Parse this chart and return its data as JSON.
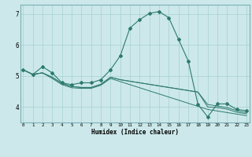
{
  "xlabel": "Humidex (Indice chaleur)",
  "bg_color": "#cce8ea",
  "grid_color": "#a8d0d4",
  "line_color": "#2d7a6e",
  "x_values": [
    0,
    1,
    2,
    3,
    4,
    5,
    6,
    7,
    8,
    9,
    10,
    11,
    12,
    13,
    14,
    15,
    16,
    17,
    18,
    19,
    20,
    21,
    22,
    23
  ],
  "series": [
    [
      5.2,
      5.05,
      5.3,
      5.1,
      4.78,
      4.72,
      4.78,
      4.78,
      4.88,
      5.2,
      5.65,
      6.55,
      6.82,
      7.02,
      7.08,
      6.88,
      6.18,
      5.48,
      4.08,
      3.68,
      4.1,
      4.1,
      3.92,
      3.88
    ],
    [
      5.2,
      5.05,
      5.1,
      4.92,
      4.72,
      4.62,
      4.6,
      4.6,
      4.7,
      4.92,
      4.82,
      4.72,
      4.62,
      4.52,
      4.42,
      4.32,
      4.22,
      4.12,
      4.02,
      3.92,
      3.87,
      3.82,
      3.77,
      3.72
    ],
    [
      5.2,
      5.05,
      5.1,
      4.96,
      4.76,
      4.66,
      4.63,
      4.63,
      4.73,
      4.96,
      4.88,
      4.83,
      4.78,
      4.73,
      4.68,
      4.63,
      4.58,
      4.53,
      4.48,
      4.0,
      3.98,
      3.93,
      3.83,
      3.78
    ],
    [
      5.2,
      5.05,
      5.1,
      4.96,
      4.76,
      4.66,
      4.63,
      4.63,
      4.73,
      4.96,
      4.88,
      4.83,
      4.78,
      4.73,
      4.68,
      4.63,
      4.58,
      4.53,
      4.48,
      4.08,
      4.03,
      3.98,
      3.88,
      3.82
    ]
  ],
  "ylim": [
    3.5,
    7.3
  ],
  "yticks": [
    4,
    5,
    6,
    7
  ],
  "xticks": [
    0,
    1,
    2,
    3,
    4,
    5,
    6,
    7,
    8,
    9,
    10,
    11,
    12,
    13,
    14,
    15,
    16,
    17,
    18,
    19,
    20,
    21,
    22,
    23
  ]
}
